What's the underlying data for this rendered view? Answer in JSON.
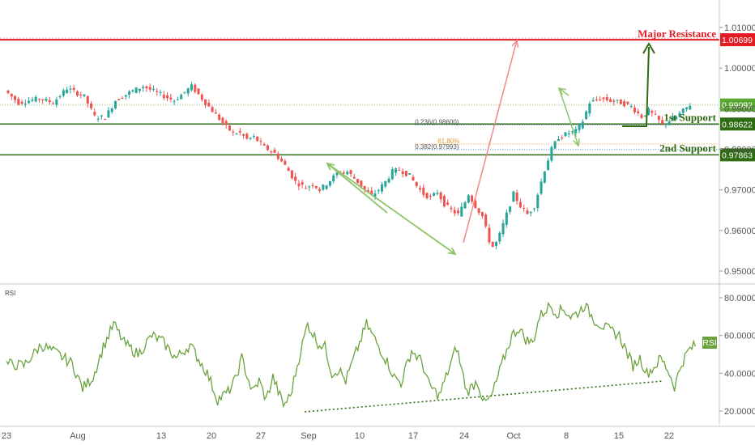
{
  "chart_data": [
    {
      "type": "candlestick",
      "title": "",
      "x_ticks": [
        "23",
        "Aug",
        "13",
        "20",
        "27",
        "Sep",
        "10",
        "17",
        "24",
        "Oct",
        "8",
        "15",
        "22"
      ],
      "y_ticks": [
        "0.95000",
        "0.96000",
        "0.97000",
        "0.98000",
        "0.99000",
        "1.00000",
        "1.01000"
      ],
      "ylim": [
        0.9482,
        1.0122
      ],
      "grid": false,
      "price_path": [
        [
          0,
          0.9945
        ],
        [
          4,
          0.9915
        ],
        [
          10,
          0.9925
        ],
        [
          14,
          0.9915
        ],
        [
          18,
          0.995
        ],
        [
          23,
          0.993
        ],
        [
          26,
          0.988
        ],
        [
          29,
          0.9878
        ],
        [
          32,
          0.992
        ],
        [
          36,
          0.994
        ],
        [
          40,
          0.9955
        ],
        [
          45,
          0.9935
        ],
        [
          49,
          0.992
        ],
        [
          54,
          0.9955
        ],
        [
          59,
          0.9905
        ],
        [
          62,
          0.9875
        ],
        [
          64,
          0.9855
        ],
        [
          66,
          0.984
        ],
        [
          68,
          0.984
        ],
        [
          70,
          0.9825
        ],
        [
          72,
          0.983
        ],
        [
          75,
          0.9805
        ],
        [
          78,
          0.979
        ],
        [
          81,
          0.976
        ],
        [
          84,
          0.972
        ],
        [
          87,
          0.9705
        ],
        [
          89,
          0.9715
        ],
        [
          91,
          0.97
        ],
        [
          93,
          0.9715
        ],
        [
          96,
          0.974
        ],
        [
          99,
          0.9745
        ],
        [
          102,
          0.972
        ],
        [
          104,
          0.97
        ],
        [
          106,
          0.9685
        ],
        [
          108,
          0.97
        ],
        [
          110,
          0.972
        ],
        [
          112,
          0.9745
        ],
        [
          114,
          0.975
        ],
        [
          117,
          0.9735
        ],
        [
          119,
          0.971
        ],
        [
          121,
          0.969
        ],
        [
          123,
          0.968
        ],
        [
          125,
          0.9695
        ],
        [
          127,
          0.9665
        ],
        [
          129,
          0.965
        ],
        [
          131,
          0.964
        ],
        [
          133,
          0.967
        ],
        [
          134,
          0.969
        ],
        [
          136,
          0.966
        ],
        [
          138,
          0.9635
        ],
        [
          140,
          0.9575
        ],
        [
          141,
          0.956
        ],
        [
          142,
          0.957
        ],
        [
          143,
          0.959
        ],
        [
          145,
          0.964
        ],
        [
          147,
          0.969
        ],
        [
          149,
          0.966
        ],
        [
          151,
          0.964
        ],
        [
          153,
          0.966
        ],
        [
          154,
          0.969
        ],
        [
          156,
          0.975
        ],
        [
          158,
          0.98
        ],
        [
          160,
          0.983
        ],
        [
          163,
          0.984
        ],
        [
          165,
          0.9845
        ],
        [
          167,
          0.987
        ],
        [
          169,
          0.9915
        ],
        [
          172,
          0.9925
        ],
        [
          175,
          0.992
        ],
        [
          178,
          0.9915
        ],
        [
          181,
          0.9905
        ],
        [
          184,
          0.988
        ],
        [
          186,
          0.9895
        ],
        [
          188,
          0.988
        ],
        [
          190,
          0.986
        ],
        [
          192,
          0.987
        ],
        [
          194,
          0.988
        ],
        [
          196,
          0.9895
        ],
        [
          198,
          0.991
        ]
      ],
      "levels": [
        {
          "label": "Major Resistance",
          "price": 1.00699,
          "tag": "1.00699",
          "color": "#e31b23"
        },
        {
          "label": "1st Support",
          "price": 0.98622,
          "tag": "0.98622",
          "color": "#2e6b12"
        },
        {
          "label": "2nd Support",
          "price": 0.97863,
          "tag": "0.97863",
          "color": "#2e6b12"
        }
      ],
      "current_price": {
        "tag": "0.99092",
        "price": 0.99092,
        "color": "#5aa832"
      },
      "fib_levels": [
        {
          "label": "0.236(0.98600)",
          "price": 0.986
        },
        {
          "label": "61.80%",
          "price": 0.9813
        },
        {
          "label": "0.382(0.97993)",
          "price": 0.97993
        }
      ]
    },
    {
      "type": "line",
      "title": "RSI",
      "tag": "RSI",
      "y_ticks": [
        "20.0000",
        "40.0000",
        "60.0000",
        "80.0000"
      ],
      "ylim": [
        14,
        84
      ],
      "rsi_path": [
        [
          0,
          45
        ],
        [
          5,
          44
        ],
        [
          10,
          55
        ],
        [
          15,
          50
        ],
        [
          19,
          45
        ],
        [
          22,
          32
        ],
        [
          25,
          38
        ],
        [
          28,
          54
        ],
        [
          31,
          66
        ],
        [
          34,
          56
        ],
        [
          38,
          50
        ],
        [
          42,
          60
        ],
        [
          45,
          57
        ],
        [
          49,
          48
        ],
        [
          53,
          55
        ],
        [
          58,
          40
        ],
        [
          61,
          26
        ],
        [
          64,
          30
        ],
        [
          66,
          36
        ],
        [
          68,
          48
        ],
        [
          71,
          30
        ],
        [
          73,
          36
        ],
        [
          75,
          26
        ],
        [
          77,
          38
        ],
        [
          80,
          23
        ],
        [
          82,
          28
        ],
        [
          85,
          52
        ],
        [
          87,
          66
        ],
        [
          90,
          56
        ],
        [
          92,
          54
        ],
        [
          94,
          40
        ],
        [
          96,
          42
        ],
        [
          98,
          36
        ],
        [
          100,
          46
        ],
        [
          102,
          56
        ],
        [
          104,
          66
        ],
        [
          107,
          56
        ],
        [
          110,
          46
        ],
        [
          112,
          38
        ],
        [
          114,
          35
        ],
        [
          117,
          52
        ],
        [
          120,
          46
        ],
        [
          122,
          34
        ],
        [
          125,
          28
        ],
        [
          127,
          38
        ],
        [
          130,
          54
        ],
        [
          133,
          30
        ],
        [
          136,
          36
        ],
        [
          138,
          24
        ],
        [
          140,
          27
        ],
        [
          143,
          44
        ],
        [
          146,
          60
        ],
        [
          148,
          64
        ],
        [
          150,
          58
        ],
        [
          152,
          56
        ],
        [
          154,
          70
        ],
        [
          157,
          76
        ],
        [
          159,
          72
        ],
        [
          161,
          74
        ],
        [
          163,
          70
        ],
        [
          165,
          72
        ],
        [
          167,
          76
        ],
        [
          170,
          68
        ],
        [
          173,
          64
        ],
        [
          175,
          62
        ],
        [
          177,
          60
        ],
        [
          179,
          52
        ],
        [
          181,
          44
        ],
        [
          183,
          48
        ],
        [
          185,
          40
        ],
        [
          187,
          43
        ],
        [
          189,
          48
        ],
        [
          191,
          42
        ],
        [
          193,
          33
        ],
        [
          195,
          45
        ],
        [
          197,
          52
        ],
        [
          199,
          55
        ]
      ]
    }
  ],
  "annotations": {
    "major_resistance": "Major Resistance",
    "first_support": "1st Support",
    "second_support": "2nd Support",
    "rsi_label": "RSI"
  }
}
